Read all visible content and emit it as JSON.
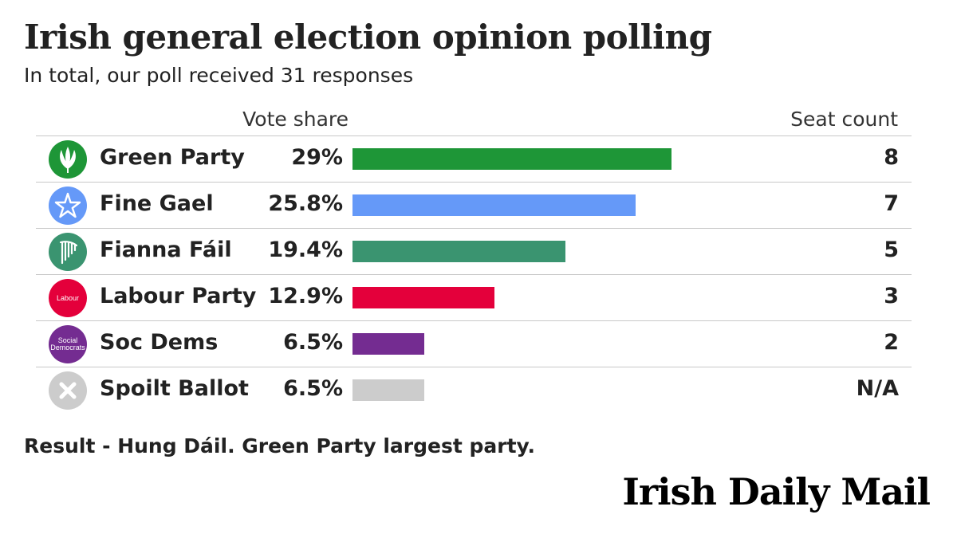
{
  "title": "Irish general election opinion polling",
  "subtitle": "In total, our poll received 31 responses",
  "note": "Result - Hung Dáil. Green Party largest party.",
  "brand": "Irish Daily Mail",
  "chart_data": {
    "type": "bar",
    "orientation": "horizontal",
    "columns": {
      "vote_share": "Vote share",
      "seat_count": "Seat count"
    },
    "xlim": [
      0,
      45
    ],
    "grid": false,
    "rows": [
      {
        "party": "Green Party",
        "pct_label": "29%",
        "value": 29.0,
        "seats": "8",
        "color": "#1e9637",
        "logo": "green-party-logo-icon",
        "logo_color": "#1e9637"
      },
      {
        "party": "Fine Gael",
        "pct_label": "25.8%",
        "value": 25.8,
        "seats": "7",
        "color": "#6599f8",
        "logo": "fine-gael-logo-icon",
        "logo_color": "#6599f8"
      },
      {
        "party": "Fianna Fáil",
        "pct_label": "19.4%",
        "value": 19.4,
        "seats": "5",
        "color": "#3a9470",
        "logo": "fianna-fail-logo-icon",
        "logo_color": "#3a9470"
      },
      {
        "party": "Labour Party",
        "pct_label": "12.9%",
        "value": 12.9,
        "seats": "3",
        "color": "#e4003b",
        "logo": "labour-logo-icon",
        "logo_color": "#e4003b",
        "logo_text": "Labour"
      },
      {
        "party": "Soc Dems",
        "pct_label": "6.5%",
        "value": 6.5,
        "seats": "2",
        "color": "#742c91",
        "logo": "soc-dems-logo-icon",
        "logo_color": "#742c91",
        "logo_text": "Social Democrats"
      },
      {
        "party": "Spoilt Ballot",
        "pct_label": "6.5%",
        "value": 6.5,
        "seats": "N/A",
        "color": "#cccccc",
        "logo": "cross-icon",
        "logo_color": "#cccccc"
      }
    ]
  }
}
